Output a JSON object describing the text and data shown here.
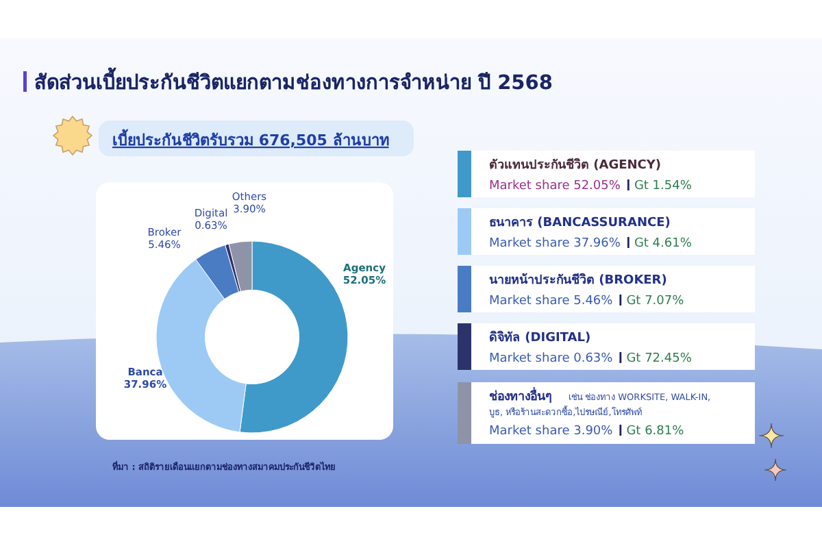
{
  "chart_data": {
    "type": "donut",
    "title": "สัดส่วนเบี้ยประกันชีวิตแยกตามช่องทางการจำหน่าย ปี 2568",
    "subtitle": "เบี้ยประกันชีวิตรับรวม 676,505 ล้านบาท",
    "categories": [
      "Agency",
      "Banca",
      "Broker",
      "Digital",
      "Others"
    ],
    "values": [
      52.05,
      37.96,
      5.46,
      0.63,
      3.9
    ],
    "value_labels": [
      "52.05%",
      "37.96%",
      "5.46%",
      "0.63%",
      "3.90%"
    ],
    "colors": [
      "#3f9ac9",
      "#9ccaf5",
      "#4a7cc3",
      "#2c336a",
      "#8e93a8"
    ],
    "annotations": [
      "ตัวแทนประกันชีวิต (AGENCY)",
      "Market share 52.05%",
      "Gt 1.54%",
      "ธนาคาร (BANCASSURANCE)",
      "Market share 37.96%",
      "Gt 4.61%",
      "นายหน้าประกันชีวิต (BROKER)",
      "Market share 5.46%",
      "Gt 7.07%",
      "ดิจิทัล (DIGITAL)",
      "Market share 0.63%",
      "Gt 72.45%",
      "ช่องทางอื่นๆ",
      "เช่น ช่องทาง WORKSITE, WALK-IN, บูธ, หรือร้านสะดวกซื้อ,ไปรษณีย์,โทรศัพท์",
      "Market share 3.90%",
      "Gt 6.81%",
      "ที่มา : สถิติรายเดือนแยกตามช่องทางสมาคมประกันชีวิตไทย"
    ]
  }
}
